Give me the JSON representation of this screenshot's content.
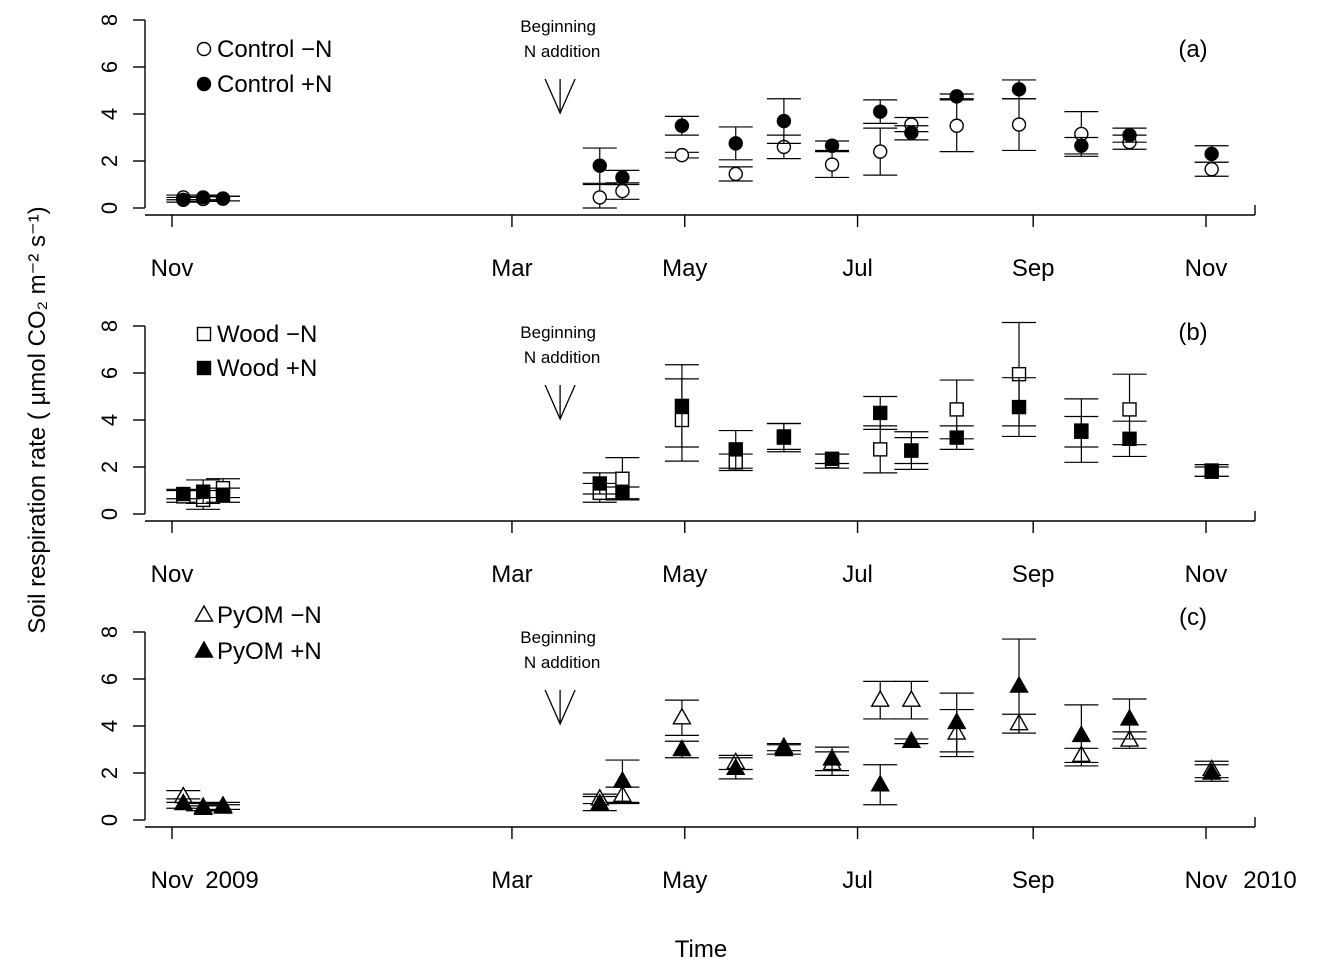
{
  "chart_data": [
    {
      "type": "scatter",
      "panel_label": "(a)",
      "ylabel": "Soil respiration rate ( µmol CO₂ m⁻² s⁻¹)",
      "ylim": [
        0,
        8
      ],
      "yticks": [
        0,
        2,
        4,
        6,
        8
      ],
      "xlim_days": [
        -5,
        358
      ],
      "xticks": [
        {
          "label": "Nov",
          "day": 0
        },
        {
          "label": "Mar",
          "day": 120
        },
        {
          "label": "May",
          "day": 181
        },
        {
          "label": "Jul",
          "day": 242
        },
        {
          "label": "Sep",
          "day": 304
        },
        {
          "label": "Nov",
          "day": 365
        }
      ],
      "annotation": {
        "line1": "Beginning",
        "line2": "N addition",
        "day": 137
      },
      "series": [
        {
          "name": "Control −N",
          "marker": "circle",
          "filled": false,
          "points": [
            {
              "x": 4,
              "y": 0.45,
              "err": 0.1
            },
            {
              "x": 11,
              "y": 0.38,
              "err": 0.1
            },
            {
              "x": 18,
              "y": 0.4,
              "err": 0.1
            },
            {
              "x": 151,
              "y": 0.45,
              "err": 0.55
            },
            {
              "x": 159,
              "y": 0.72,
              "err": 0.35
            },
            {
              "x": 180,
              "y": 2.25,
              "err": 0.12
            },
            {
              "x": 199,
              "y": 1.45,
              "err": 0.3
            },
            {
              "x": 216,
              "y": 2.6,
              "err": 0.5
            },
            {
              "x": 233,
              "y": 1.85,
              "err": 0.55
            },
            {
              "x": 250,
              "y": 2.4,
              "err": 1.0
            },
            {
              "x": 261,
              "y": 3.55,
              "err": 0.3
            },
            {
              "x": 277,
              "y": 3.5,
              "err": 1.1
            },
            {
              "x": 299,
              "y": 3.55,
              "err": 1.1
            },
            {
              "x": 321,
              "y": 3.15,
              "err": 0.95
            },
            {
              "x": 338,
              "y": 2.8,
              "err": 0.3
            },
            {
              "x": 367,
              "y": 1.65,
              "err": 0.3
            }
          ]
        },
        {
          "name": "Control +N",
          "marker": "circle",
          "filled": true,
          "points": [
            {
              "x": 4,
              "y": 0.35,
              "err": 0.1
            },
            {
              "x": 11,
              "y": 0.45,
              "err": 0.1
            },
            {
              "x": 18,
              "y": 0.4,
              "err": 0.1
            },
            {
              "x": 151,
              "y": 1.8,
              "err": 0.75
            },
            {
              "x": 159,
              "y": 1.3,
              "err": 0.3
            },
            {
              "x": 180,
              "y": 3.5,
              "err": 0.4
            },
            {
              "x": 199,
              "y": 2.75,
              "err": 0.7
            },
            {
              "x": 216,
              "y": 3.7,
              "err": 0.95
            },
            {
              "x": 233,
              "y": 2.65,
              "err": 0.2
            },
            {
              "x": 250,
              "y": 4.1,
              "err": 0.5
            },
            {
              "x": 261,
              "y": 3.2,
              "err": 0.3
            },
            {
              "x": 277,
              "y": 4.75,
              "err": 0.1
            },
            {
              "x": 299,
              "y": 5.05,
              "err": 0.4
            },
            {
              "x": 321,
              "y": 2.65,
              "err": 0.35
            },
            {
              "x": 338,
              "y": 3.1,
              "err": 0.3
            },
            {
              "x": 367,
              "y": 2.3,
              "err": 0.35
            }
          ]
        }
      ]
    },
    {
      "type": "scatter",
      "panel_label": "(b)",
      "ylim": [
        0,
        8
      ],
      "yticks": [
        0,
        2,
        4,
        6,
        8
      ],
      "xlim_days": [
        -5,
        358
      ],
      "xticks": [
        {
          "label": "Nov",
          "day": 0
        },
        {
          "label": "Mar",
          "day": 120
        },
        {
          "label": "May",
          "day": 181
        },
        {
          "label": "Jul",
          "day": 242
        },
        {
          "label": "Sep",
          "day": 304
        },
        {
          "label": "Nov",
          "day": 365
        }
      ],
      "annotation": {
        "line1": "Beginning",
        "line2": "N addition",
        "day": 137
      },
      "series": [
        {
          "name": "Wood −N",
          "marker": "square",
          "filled": false,
          "points": [
            {
              "x": 4,
              "y": 0.75,
              "err": 0.25
            },
            {
              "x": 11,
              "y": 0.6,
              "err": 0.4
            },
            {
              "x": 18,
              "y": 1.1,
              "err": 0.4
            },
            {
              "x": 151,
              "y": 0.9,
              "err": 0.4
            },
            {
              "x": 159,
              "y": 1.5,
              "err": 0.9
            },
            {
              "x": 180,
              "y": 4.0,
              "err": 1.75
            },
            {
              "x": 199,
              "y": 2.2,
              "err": 0.35
            },
            {
              "x": 216,
              "y": 3.3,
              "err": 0.55
            },
            {
              "x": 233,
              "y": 2.25,
              "err": 0.3
            },
            {
              "x": 250,
              "y": 2.75,
              "err": 1.0
            },
            {
              "x": 261,
              "y": 2.7,
              "err": 0.8
            },
            {
              "x": 277,
              "y": 4.45,
              "err": 1.25
            },
            {
              "x": 299,
              "y": 5.95,
              "err": 2.2
            },
            {
              "x": 321,
              "y": 3.55,
              "err": 1.35
            },
            {
              "x": 338,
              "y": 4.45,
              "err": 1.5
            },
            {
              "x": 367,
              "y": 1.8,
              "err": 0.2
            }
          ]
        },
        {
          "name": "Wood +N",
          "marker": "square",
          "filled": true,
          "points": [
            {
              "x": 4,
              "y": 0.85,
              "err": 0.2
            },
            {
              "x": 11,
              "y": 0.95,
              "err": 0.5
            },
            {
              "x": 18,
              "y": 0.8,
              "err": 0.3
            },
            {
              "x": 151,
              "y": 1.3,
              "err": 0.45
            },
            {
              "x": 159,
              "y": 0.9,
              "err": 0.25
            },
            {
              "x": 180,
              "y": 4.6,
              "err": 1.75
            },
            {
              "x": 199,
              "y": 2.75,
              "err": 0.8
            },
            {
              "x": 216,
              "y": 3.25,
              "err": 0.6
            },
            {
              "x": 233,
              "y": 2.35,
              "err": 0.2
            },
            {
              "x": 250,
              "y": 4.3,
              "err": 0.7
            },
            {
              "x": 261,
              "y": 2.7,
              "err": 0.55
            },
            {
              "x": 277,
              "y": 3.25,
              "err": 0.5
            },
            {
              "x": 299,
              "y": 4.55,
              "err": 1.25
            },
            {
              "x": 321,
              "y": 3.5,
              "err": 0.65
            },
            {
              "x": 338,
              "y": 3.2,
              "err": 0.75
            },
            {
              "x": 367,
              "y": 1.85,
              "err": 0.25
            }
          ]
        }
      ]
    },
    {
      "type": "scatter",
      "panel_label": "(c)",
      "ylim": [
        0,
        8
      ],
      "yticks": [
        0,
        2,
        4,
        6,
        8
      ],
      "xlim_days": [
        -5,
        358
      ],
      "xticks": [
        {
          "label": "Nov",
          "day": 0
        },
        {
          "label": "Mar",
          "day": 120
        },
        {
          "label": "May",
          "day": 181
        },
        {
          "label": "Jul",
          "day": 242
        },
        {
          "label": "Sep",
          "day": 304
        },
        {
          "label": "Nov",
          "day": 365
        }
      ],
      "annotation": {
        "line1": "Beginning",
        "line2": "N addition",
        "day": 137
      },
      "series": [
        {
          "name": "PyOM −N",
          "marker": "triangle",
          "filled": false,
          "points": [
            {
              "x": 4,
              "y": 1.0,
              "err": 0.25
            },
            {
              "x": 11,
              "y": 0.55,
              "err": 0.15
            },
            {
              "x": 18,
              "y": 0.6,
              "err": 0.15
            },
            {
              "x": 151,
              "y": 0.9,
              "err": 0.2
            },
            {
              "x": 159,
              "y": 1.05,
              "err": 0.35
            },
            {
              "x": 180,
              "y": 4.35,
              "err": 0.75
            },
            {
              "x": 199,
              "y": 2.45,
              "err": 0.3
            },
            {
              "x": 216,
              "y": 3.1,
              "err": 0.15
            },
            {
              "x": 233,
              "y": 2.4,
              "err": 0.5
            },
            {
              "x": 250,
              "y": 5.1,
              "err": 0.8
            },
            {
              "x": 261,
              "y": 5.1,
              "err": 0.8
            },
            {
              "x": 277,
              "y": 3.7,
              "err": 1.0
            },
            {
              "x": 299,
              "y": 4.1,
              "err": 0.4
            },
            {
              "x": 321,
              "y": 2.75,
              "err": 0.3
            },
            {
              "x": 338,
              "y": 3.4,
              "err": 0.35
            },
            {
              "x": 367,
              "y": 2.15,
              "err": 0.35
            }
          ]
        },
        {
          "name": "PyOM +N",
          "marker": "triangle",
          "filled": true,
          "points": [
            {
              "x": 4,
              "y": 0.7,
              "err": 0.2
            },
            {
              "x": 11,
              "y": 0.5,
              "err": 0.1
            },
            {
              "x": 18,
              "y": 0.55,
              "err": 0.1
            },
            {
              "x": 151,
              "y": 0.7,
              "err": 0.3
            },
            {
              "x": 159,
              "y": 1.65,
              "err": 0.9
            },
            {
              "x": 180,
              "y": 3.0,
              "err": 0.35
            },
            {
              "x": 199,
              "y": 2.2,
              "err": 0.45
            },
            {
              "x": 216,
              "y": 3.0,
              "err": 0.2
            },
            {
              "x": 233,
              "y": 2.6,
              "err": 0.5
            },
            {
              "x": 250,
              "y": 1.5,
              "err": 0.85
            },
            {
              "x": 261,
              "y": 3.35,
              "err": 0.1
            },
            {
              "x": 277,
              "y": 4.15,
              "err": 1.25
            },
            {
              "x": 299,
              "y": 5.7,
              "err": 2.0
            },
            {
              "x": 321,
              "y": 3.6,
              "err": 1.3
            },
            {
              "x": 338,
              "y": 4.3,
              "err": 0.85
            },
            {
              "x": 367,
              "y": 2.0,
              "err": 0.35
            }
          ]
        }
      ]
    }
  ],
  "bottom_labels": {
    "left_year": "2009",
    "right_year": "2010"
  },
  "xlabel": "Time"
}
